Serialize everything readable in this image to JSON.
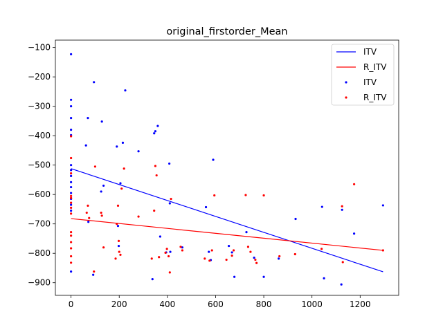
{
  "chart_data": {
    "type": "scatter",
    "title": "original_firstorder_Mean",
    "xlabel": "",
    "ylabel": "",
    "xlim": [
      -65,
      1360
    ],
    "ylim": [
      -943,
      -75
    ],
    "xticks": [
      0,
      200,
      400,
      600,
      800,
      1000,
      1200
    ],
    "xtick_labels": [
      "0",
      "200",
      "400",
      "600",
      "800",
      "1000",
      "1200"
    ],
    "yticks": [
      -100,
      -200,
      -300,
      -400,
      -500,
      -600,
      -700,
      -800,
      -900
    ],
    "ytick_labels": [
      "−100",
      "−200",
      "−300",
      "−400",
      "−500",
      "−600",
      "−700",
      "−800",
      "−900"
    ],
    "grid": false,
    "legend_position": "top-right",
    "colors": {
      "ITV": "#0000ff",
      "R_ITV": "#ff0000"
    },
    "legend": [
      {
        "label": "ITV",
        "kind": "line",
        "color": "#0000ff"
      },
      {
        "label": "R_ITV",
        "kind": "line",
        "color": "#ff0000"
      },
      {
        "label": "ITV",
        "kind": "marker",
        "color": "#0000ff"
      },
      {
        "label": "R_ITV",
        "kind": "marker",
        "color": "#ff0000"
      }
    ],
    "lines": [
      {
        "name": "ITV",
        "color": "#0000ff",
        "x": [
          0,
          1295
        ],
        "y": [
          -512,
          -863
        ]
      },
      {
        "name": "R_ITV",
        "color": "#ff0000",
        "x": [
          0,
          1295
        ],
        "y": [
          -682,
          -790
        ]
      }
    ],
    "series": [
      {
        "name": "ITV",
        "color": "#0000ff",
        "points": [
          [
            0,
            -123
          ],
          [
            0,
            -278
          ],
          [
            0,
            -300
          ],
          [
            0,
            -340
          ],
          [
            0,
            -380
          ],
          [
            0,
            -398
          ],
          [
            0,
            -500
          ],
          [
            0,
            -517
          ],
          [
            0,
            -537
          ],
          [
            0,
            -558
          ],
          [
            0,
            -575
          ],
          [
            0,
            -595
          ],
          [
            0,
            -615
          ],
          [
            0,
            -635
          ],
          [
            0,
            -655
          ],
          [
            0,
            -862
          ],
          [
            62,
            -433
          ],
          [
            70,
            -340
          ],
          [
            72,
            -693
          ],
          [
            95,
            -218
          ],
          [
            92,
            -873
          ],
          [
            128,
            -352
          ],
          [
            125,
            -590
          ],
          [
            135,
            -570
          ],
          [
            190,
            -437
          ],
          [
            195,
            -707
          ],
          [
            198,
            -775
          ],
          [
            205,
            -562
          ],
          [
            215,
            -424
          ],
          [
            225,
            -246
          ],
          [
            280,
            -453
          ],
          [
            338,
            -888
          ],
          [
            345,
            -392
          ],
          [
            350,
            -385
          ],
          [
            360,
            -367
          ],
          [
            370,
            -743
          ],
          [
            395,
            -797
          ],
          [
            408,
            -495
          ],
          [
            412,
            -795
          ],
          [
            410,
            -630
          ],
          [
            462,
            -780
          ],
          [
            560,
            -643
          ],
          [
            572,
            -795
          ],
          [
            580,
            -823
          ],
          [
            590,
            -482
          ],
          [
            655,
            -775
          ],
          [
            668,
            -797
          ],
          [
            678,
            -880
          ],
          [
            728,
            -728
          ],
          [
            760,
            -815
          ],
          [
            800,
            -880
          ],
          [
            862,
            -818
          ],
          [
            932,
            -683
          ],
          [
            1042,
            -642
          ],
          [
            1050,
            -885
          ],
          [
            1122,
            -906
          ],
          [
            1125,
            -652
          ],
          [
            1175,
            -733
          ],
          [
            1295,
            -637
          ]
        ]
      },
      {
        "name": "R_ITV",
        "color": "#ff0000",
        "points": [
          [
            0,
            -402
          ],
          [
            0,
            -476
          ],
          [
            0,
            -528
          ],
          [
            0,
            -605
          ],
          [
            0,
            -612
          ],
          [
            0,
            -628
          ],
          [
            0,
            -645
          ],
          [
            0,
            -665
          ],
          [
            0,
            -728
          ],
          [
            0,
            -740
          ],
          [
            0,
            -762
          ],
          [
            0,
            -783
          ],
          [
            0,
            -810
          ],
          [
            0,
            -832
          ],
          [
            65,
            -662
          ],
          [
            70,
            -638
          ],
          [
            75,
            -680
          ],
          [
            95,
            -862
          ],
          [
            100,
            -505
          ],
          [
            125,
            -662
          ],
          [
            128,
            -672
          ],
          [
            135,
            -780
          ],
          [
            185,
            -818
          ],
          [
            190,
            -700
          ],
          [
            195,
            -638
          ],
          [
            198,
            -758
          ],
          [
            200,
            -795
          ],
          [
            205,
            -805
          ],
          [
            210,
            -580
          ],
          [
            220,
            -512
          ],
          [
            280,
            -675
          ],
          [
            335,
            -818
          ],
          [
            345,
            -655
          ],
          [
            350,
            -503
          ],
          [
            355,
            -535
          ],
          [
            365,
            -813
          ],
          [
            392,
            -798
          ],
          [
            398,
            -785
          ],
          [
            405,
            -810
          ],
          [
            410,
            -865
          ],
          [
            415,
            -615
          ],
          [
            455,
            -778
          ],
          [
            462,
            -790
          ],
          [
            555,
            -818
          ],
          [
            575,
            -825
          ],
          [
            585,
            -790
          ],
          [
            595,
            -603
          ],
          [
            645,
            -822
          ],
          [
            668,
            -808
          ],
          [
            675,
            -790
          ],
          [
            725,
            -602
          ],
          [
            735,
            -778
          ],
          [
            745,
            -795
          ],
          [
            765,
            -822
          ],
          [
            770,
            -833
          ],
          [
            800,
            -603
          ],
          [
            865,
            -810
          ],
          [
            930,
            -803
          ],
          [
            1040,
            -785
          ],
          [
            1125,
            -640
          ],
          [
            1128,
            -830
          ],
          [
            1175,
            -565
          ],
          [
            1295,
            -790
          ]
        ]
      }
    ]
  }
}
